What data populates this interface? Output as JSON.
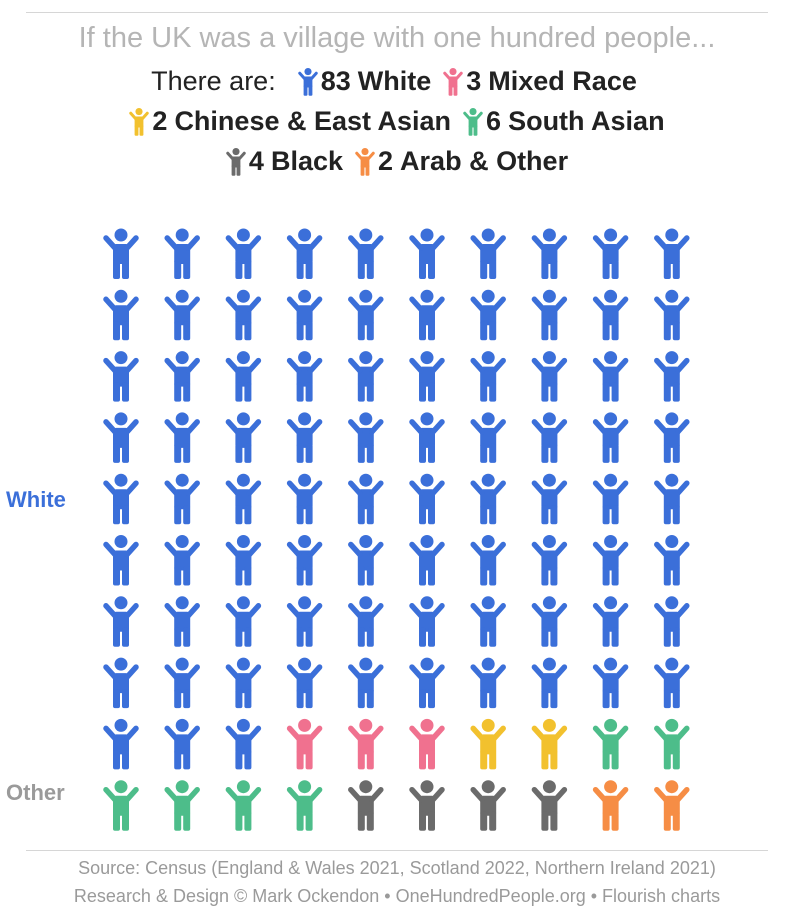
{
  "chart_data": {
    "type": "pictogram",
    "title": "If the UK was a village with one hundred people...",
    "legend_intro": "There are:",
    "categories": [
      "White",
      "Mixed Race",
      "Chinese & East Asian",
      "South Asian",
      "Black",
      "Arab & Other"
    ],
    "values": [
      83,
      3,
      2,
      6,
      4,
      2
    ],
    "colors": [
      "#3b6fd9",
      "#f0718f",
      "#f2c12e",
      "#4dbd8a",
      "#6b6b6b",
      "#f68d45"
    ],
    "group_labels": [
      "White",
      "Other"
    ],
    "source": [
      "Source: Census (England & Wales 2021, Scotland 2022, Northern Ireland 2021)",
      "Research & Design © Mark Ockendon • OneHundredPeople.org • Flourish charts"
    ]
  }
}
